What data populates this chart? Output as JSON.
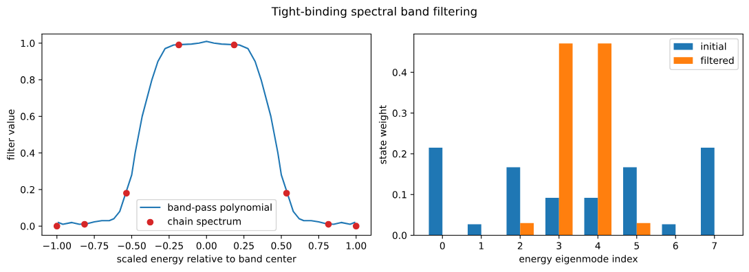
{
  "chart_data": [
    {
      "type": "line",
      "title": "Tight-binding spectral band filtering",
      "xlabel": "scaled energy relative to band center",
      "ylabel": "filter value",
      "xlim": [
        -1.1,
        1.1
      ],
      "ylim": [
        -0.05,
        1.05
      ],
      "xticks": [
        {
          "value": -1.0,
          "label": "−1.00"
        },
        {
          "value": -0.75,
          "label": "−0.75"
        },
        {
          "value": -0.5,
          "label": "−0.50"
        },
        {
          "value": -0.25,
          "label": "−0.25"
        },
        {
          "value": 0.0,
          "label": "0.00"
        },
        {
          "value": 0.25,
          "label": "0.25"
        },
        {
          "value": 0.5,
          "label": "0.50"
        },
        {
          "value": 0.75,
          "label": "0.75"
        },
        {
          "value": 1.0,
          "label": "1.00"
        }
      ],
      "yticks": [
        {
          "value": 0.0,
          "label": "0.0"
        },
        {
          "value": 0.2,
          "label": "0.2"
        },
        {
          "value": 0.4,
          "label": "0.4"
        },
        {
          "value": 0.6,
          "label": "0.6"
        },
        {
          "value": 0.8,
          "label": "0.8"
        },
        {
          "value": 1.0,
          "label": "1.0"
        }
      ],
      "legend": "bottom",
      "grid": false,
      "series": [
        {
          "name": "band-pass polynomial",
          "type": "line",
          "color": "#1f77b4",
          "marker": "none",
          "x": [
            -0.99,
            -0.96,
            -0.9,
            -0.85,
            -0.8,
            -0.75,
            -0.7,
            -0.65,
            -0.62,
            -0.58,
            -0.5,
            -0.477,
            -0.43,
            -0.365,
            -0.325,
            -0.277,
            -0.22,
            -0.1,
            -0.05,
            0.0,
            0.05,
            0.1,
            0.22,
            0.277,
            0.325,
            0.365,
            0.43,
            0.477,
            0.5,
            0.58,
            0.62,
            0.65,
            0.7,
            0.75,
            0.8,
            0.85,
            0.9,
            0.96,
            0.99
          ],
          "values": [
            0.02,
            0.01,
            0.02,
            0.01,
            0.013,
            0.023,
            0.03,
            0.03,
            0.04,
            0.08,
            0.28,
            0.4,
            0.6,
            0.8,
            0.9,
            0.97,
            0.99,
            0.995,
            1.0,
            1.01,
            1.0,
            0.995,
            0.99,
            0.97,
            0.9,
            0.8,
            0.6,
            0.4,
            0.28,
            0.08,
            0.04,
            0.03,
            0.03,
            0.023,
            0.013,
            0.01,
            0.02,
            0.01,
            0.02
          ]
        },
        {
          "name": "chain spectrum",
          "type": "scatter",
          "color": "#d62728",
          "marker": "circle",
          "x": [
            -1.0,
            -0.815,
            -0.535,
            -0.185,
            0.185,
            0.535,
            0.815,
            1.0
          ],
          "values": [
            0.0,
            0.01,
            0.18,
            0.99,
            0.99,
            0.18,
            0.01,
            0.0
          ]
        }
      ]
    },
    {
      "type": "bar",
      "xlabel": "energy eigenmode index",
      "ylabel": "state weight",
      "categories": [
        "0",
        "1",
        "2",
        "3",
        "4",
        "5",
        "6",
        "7"
      ],
      "ylim": [
        0,
        0.494
      ],
      "yticks": [
        {
          "value": 0.0,
          "label": "0.0"
        },
        {
          "value": 0.1,
          "label": "0.1"
        },
        {
          "value": 0.2,
          "label": "0.2"
        },
        {
          "value": 0.3,
          "label": "0.3"
        },
        {
          "value": 0.4,
          "label": "0.4"
        }
      ],
      "legend": "top right",
      "grid": false,
      "series": [
        {
          "name": "initial",
          "color": "#1f77b4",
          "values": [
            0.215,
            0.027,
            0.167,
            0.092,
            0.092,
            0.167,
            0.027,
            0.215
          ]
        },
        {
          "name": "filtered",
          "color": "#ff7f0e",
          "values": [
            0.0,
            0.0,
            0.03,
            0.471,
            0.471,
            0.03,
            0.0,
            0.0
          ]
        }
      ]
    }
  ]
}
